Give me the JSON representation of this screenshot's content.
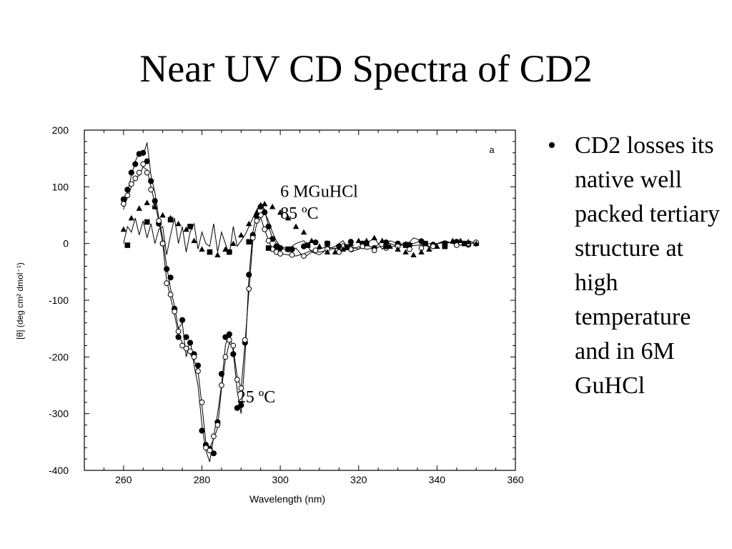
{
  "slide": {
    "title": "Near UV CD Spectra of CD2",
    "bullet_text": "CD2 losses its native well packed tertiary structure at high temperature and in 6M GuHCl",
    "bullet_symbol": "•"
  },
  "chart_data": {
    "type": "line",
    "panel_letter": "a",
    "xlabel": "Wavelength (nm)",
    "ylabel": "[θ]  (deg cm² dmol⁻¹)",
    "xlim": [
      250,
      360
    ],
    "ylim": [
      -400,
      200
    ],
    "xticks": [
      260,
      280,
      300,
      320,
      340,
      360
    ],
    "yticks": [
      -400,
      -300,
      -200,
      -100,
      0,
      100,
      200
    ],
    "grid": false,
    "annotations": [
      {
        "text": "6 MGuHCl",
        "x": 300,
        "y": 82
      },
      {
        "text": "85 ºC",
        "x": 300,
        "y": 44
      },
      {
        "text": "25 ºC",
        "x": 289,
        "y": -280
      }
    ],
    "series": [
      {
        "marker": "filled-circle",
        "x": [
          260,
          261,
          262,
          263,
          264,
          265,
          266,
          267,
          268,
          269,
          270,
          271,
          272,
          273,
          274,
          275,
          276,
          277,
          278,
          279,
          280,
          281,
          282,
          283,
          284,
          285,
          286,
          287,
          288,
          289,
          290,
          291,
          292,
          293,
          294,
          295,
          296,
          297,
          298,
          299,
          300,
          303,
          306,
          309,
          312,
          315,
          318,
          321,
          324,
          327,
          330,
          333,
          336,
          339,
          342,
          345,
          348,
          350
        ],
        "y": [
          78,
          95,
          125,
          140,
          158,
          160,
          145,
          110,
          75,
          35,
          0,
          -45,
          -60,
          -115,
          -165,
          -135,
          -165,
          -175,
          -195,
          -215,
          -330,
          -355,
          -362,
          -370,
          -315,
          -230,
          -165,
          -160,
          -195,
          -290,
          -285,
          -175,
          -55,
          15,
          48,
          65,
          55,
          30,
          8,
          -5,
          -8,
          -10,
          -5,
          2,
          0,
          -5,
          3,
          0,
          -8,
          2,
          0,
          -3,
          4,
          -2,
          0,
          3,
          -2,
          0
        ]
      },
      {
        "marker": "open-circle",
        "x": [
          260,
          261,
          262,
          263,
          264,
          265,
          266,
          267,
          268,
          269,
          270,
          271,
          272,
          273,
          274,
          275,
          276,
          277,
          278,
          279,
          280,
          281,
          282,
          283,
          284,
          285,
          286,
          287,
          288,
          289,
          290,
          291,
          292,
          293,
          294,
          295,
          296,
          297,
          298,
          299,
          300,
          303,
          306,
          309,
          312,
          315,
          318,
          321,
          324,
          327,
          330,
          333,
          336,
          339,
          342,
          345,
          348,
          350
        ],
        "y": [
          70,
          85,
          105,
          115,
          125,
          140,
          125,
          95,
          65,
          40,
          0,
          -70,
          -90,
          -120,
          -155,
          -180,
          -185,
          -190,
          -200,
          -225,
          -280,
          -360,
          -365,
          -340,
          -320,
          -250,
          -200,
          -170,
          -180,
          -240,
          -255,
          -170,
          -80,
          10,
          40,
          50,
          25,
          5,
          -10,
          -15,
          -18,
          -20,
          -22,
          -12,
          -10,
          -15,
          -10,
          -5,
          -12,
          -8,
          -5,
          -10,
          -8,
          -5,
          -5,
          -3,
          0,
          2
        ]
      },
      {
        "marker": "filled-triangle",
        "x": [
          260,
          262,
          264,
          266,
          268,
          270,
          272,
          274,
          276,
          278,
          280,
          282,
          284,
          286,
          288,
          290,
          292,
          294,
          296,
          298,
          300,
          302,
          304,
          306,
          308,
          310,
          312,
          314,
          316,
          318,
          320,
          322,
          324,
          326,
          328,
          330,
          332,
          334,
          336,
          338,
          340,
          342,
          344,
          346,
          348,
          350
        ],
        "y": [
          25,
          45,
          62,
          72,
          65,
          50,
          45,
          35,
          25,
          5,
          -10,
          -15,
          -20,
          -10,
          0,
          15,
          35,
          55,
          70,
          65,
          55,
          45,
          30,
          20,
          5,
          -5,
          -15,
          -15,
          -10,
          0,
          5,
          5,
          10,
          5,
          -5,
          -10,
          -15,
          -20,
          -15,
          -10,
          -5,
          0,
          5,
          5,
          3,
          0
        ]
      },
      {
        "marker": "filled-square",
        "x": [
          261,
          266,
          272,
          277,
          282,
          287,
          292,
          297,
          302,
          307,
          312,
          317,
          322,
          327,
          332,
          337,
          342,
          347
        ],
        "y": [
          -3,
          38,
          42,
          30,
          -15,
          -15,
          3,
          -8,
          -10,
          -3,
          0,
          -6,
          0,
          -5,
          -3,
          0,
          -5,
          0
        ]
      }
    ],
    "traces": [
      {
        "x": [
          260,
          261,
          262,
          263,
          264,
          265,
          266,
          267,
          268,
          269,
          270,
          271,
          272,
          273,
          274,
          275,
          276,
          277,
          278,
          279,
          280,
          281,
          282,
          283,
          284,
          285,
          286,
          287,
          288,
          289,
          290,
          291,
          292,
          293,
          294,
          295,
          296,
          297,
          298,
          299,
          300,
          302,
          304,
          306,
          308,
          310,
          312,
          314,
          316,
          318,
          320,
          322,
          324,
          326,
          328,
          330,
          332,
          334,
          336,
          338,
          340,
          342,
          344,
          346,
          348,
          350
        ],
        "y": [
          60,
          90,
          120,
          145,
          160,
          155,
          178,
          120,
          90,
          45,
          10,
          -40,
          -80,
          -110,
          -150,
          -140,
          -200,
          -170,
          -215,
          -250,
          -320,
          -365,
          -385,
          -340,
          -300,
          -250,
          -180,
          -155,
          -190,
          -260,
          -300,
          -200,
          -60,
          20,
          55,
          72,
          60,
          30,
          10,
          0,
          -5,
          -15,
          -8,
          -25,
          -15,
          -10,
          -5,
          -10,
          0,
          -5,
          -10,
          -3,
          -8,
          5,
          0,
          -5,
          3,
          0,
          5,
          -8,
          0,
          3,
          0,
          -3,
          5,
          0
        ]
      },
      {
        "x": [
          260,
          261,
          262,
          263,
          264,
          265,
          266,
          267,
          268,
          269,
          270,
          271,
          272,
          273,
          274,
          275,
          276,
          277,
          278,
          279,
          280,
          281,
          282,
          283,
          284,
          285,
          286,
          287,
          288,
          289,
          290,
          291,
          292,
          293,
          294,
          295,
          296,
          297,
          298,
          299,
          300,
          302,
          304,
          306,
          308,
          310,
          312,
          314,
          316,
          318,
          320,
          322,
          324,
          326,
          328,
          330,
          332,
          334,
          336,
          338,
          340,
          342,
          344,
          346,
          348,
          350
        ],
        "y": [
          65,
          80,
          100,
          115,
          120,
          135,
          130,
          100,
          70,
          40,
          0,
          -65,
          -95,
          -125,
          -160,
          -175,
          -185,
          -195,
          -205,
          -225,
          -285,
          -350,
          -360,
          -345,
          -325,
          -255,
          -205,
          -175,
          -185,
          -235,
          -255,
          -175,
          -85,
          5,
          35,
          45,
          25,
          5,
          -10,
          -15,
          -18,
          -20,
          -22,
          -18,
          -12,
          -15,
          -12,
          -8,
          -12,
          -10,
          -6,
          -10,
          -8,
          -5,
          -6,
          -4,
          -2,
          -4,
          -2,
          0,
          0,
          2,
          1,
          2,
          0,
          1
        ]
      },
      {
        "x": [
          260,
          261,
          262,
          263,
          264,
          265,
          266,
          267,
          268,
          269,
          270,
          271,
          272,
          273,
          274,
          275,
          276,
          277,
          278,
          279,
          280,
          281,
          282,
          283,
          284,
          285,
          286,
          287,
          288,
          289,
          290,
          291,
          292,
          293,
          294,
          295,
          296,
          297,
          298,
          299,
          300,
          302,
          304,
          306,
          308,
          310,
          312,
          314,
          316,
          318,
          320,
          322,
          324,
          326,
          328,
          330,
          332,
          334,
          336,
          338,
          340,
          342,
          344,
          346,
          348,
          350
        ],
        "y": [
          0,
          30,
          20,
          45,
          15,
          40,
          10,
          35,
          0,
          25,
          30,
          -20,
          15,
          45,
          0,
          30,
          -15,
          20,
          35,
          -10,
          20,
          0,
          -5,
          35,
          -15,
          20,
          0,
          -20,
          30,
          -5,
          5,
          15,
          30,
          45,
          60,
          70,
          55,
          40,
          20,
          5,
          -5,
          -10,
          0,
          5,
          -15,
          -20,
          -10,
          -5,
          5,
          -15,
          -10,
          0,
          10,
          -10,
          5,
          0,
          -5,
          10,
          5,
          -5,
          0,
          5,
          0,
          -3,
          5,
          0
        ]
      }
    ]
  }
}
